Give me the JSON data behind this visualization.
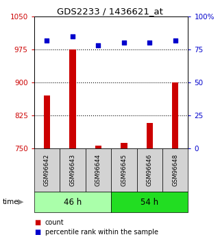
{
  "title": "GDS2233 / 1436621_at",
  "samples": [
    "GSM96642",
    "GSM96643",
    "GSM96644",
    "GSM96645",
    "GSM96646",
    "GSM96648"
  ],
  "groups": [
    {
      "label": "46 h",
      "color": "#aaffaa",
      "indices": [
        0,
        1,
        2
      ]
    },
    {
      "label": "54 h",
      "color": "#22dd22",
      "indices": [
        3,
        4,
        5
      ]
    }
  ],
  "counts": [
    870,
    975,
    755,
    762,
    808,
    900
  ],
  "percentiles": [
    82,
    85,
    78,
    80,
    80,
    82
  ],
  "ylim_left": [
    750,
    1050
  ],
  "ylim_right": [
    0,
    100
  ],
  "yticks_left": [
    750,
    825,
    900,
    975,
    1050
  ],
  "yticks_right": [
    0,
    25,
    50,
    75,
    100
  ],
  "hlines": [
    825,
    900,
    975
  ],
  "bar_color": "#cc0000",
  "dot_color": "#0000cc",
  "left_axis_color": "#cc0000",
  "right_axis_color": "#0000cc",
  "background_color": "#ffffff"
}
